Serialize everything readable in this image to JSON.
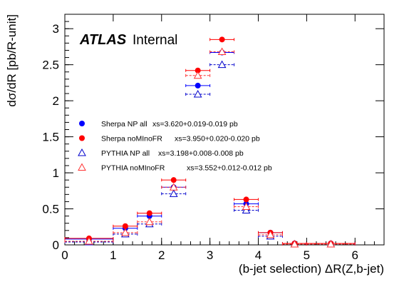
{
  "chart_data": {
    "type": "scatter",
    "xlabel": "(b-jet selection) ΔR(Z,b-jet)",
    "ylabel": "dσ/dR [pb/R-unit]",
    "xlim": [
      0,
      6.6
    ],
    "ylim": [
      0,
      3.2
    ],
    "x_ticks": [
      "0",
      "1",
      "2",
      "3",
      "4",
      "5",
      "6"
    ],
    "y_ticks": [
      "0",
      "0.5",
      "1",
      "1.5",
      "2",
      "2.5",
      "3"
    ],
    "grid": false,
    "legend_position": "left-middle",
    "atlas_label": "ATLAS",
    "atlas_status": "Internal",
    "bin_edges": [
      0,
      1,
      1.5,
      2,
      2.5,
      3,
      3.5,
      4,
      4.5,
      5,
      6
    ],
    "series": [
      {
        "name": "Sherpa NP all",
        "xs": "xs=3.620+0.019-0.019 pb",
        "marker": "filled-circle",
        "color": "#0000ff",
        "dashed": false,
        "values": [
          0.08,
          0.23,
          0.4,
          0.8,
          2.21,
          2.67,
          0.57,
          0.17,
          0.02,
          0.02
        ]
      },
      {
        "name": "Sherpa noMInoFR",
        "xs": "xs=3.950+0.020-0.020 pb",
        "marker": "filled-circle",
        "color": "#ff0000",
        "dashed": false,
        "values": [
          0.09,
          0.26,
          0.44,
          0.9,
          2.42,
          2.85,
          0.63,
          0.17,
          0.02,
          0.02
        ]
      },
      {
        "name": "PYTHIA NP all",
        "xs": "xs=3.198+0.008-0.008 pb",
        "marker": "open-triangle",
        "color": "#0000cc",
        "dashed": true,
        "values": [
          0.04,
          0.15,
          0.29,
          0.71,
          2.09,
          2.5,
          0.48,
          0.12,
          0.01,
          0.01
        ]
      },
      {
        "name": "PYTHIA noMInoFR",
        "xs": "xs=3.552+0.012-0.012 pb",
        "marker": "open-triangle",
        "color": "#ff3333",
        "dashed": true,
        "values": [
          0.05,
          0.17,
          0.32,
          0.8,
          2.35,
          2.68,
          0.53,
          0.14,
          0.01,
          0.01
        ]
      }
    ]
  }
}
